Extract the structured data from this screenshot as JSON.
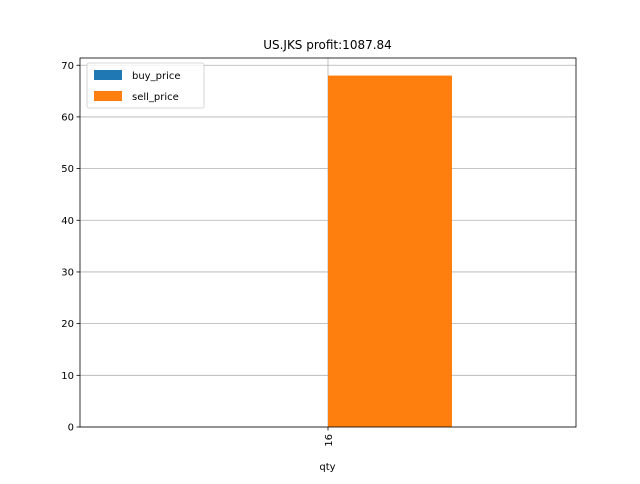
{
  "chart_data": {
    "type": "bar",
    "title": "US.JKS  profit:1087.84",
    "xlabel": "qty",
    "ylabel": "",
    "categories": [
      "16"
    ],
    "series": [
      {
        "name": "buy_price",
        "values": [
          0
        ],
        "color": "#1f77b4"
      },
      {
        "name": "sell_price",
        "values": [
          68
        ],
        "color": "#ff7f0e"
      }
    ],
    "ylim": [
      0,
      71.4
    ],
    "yticks": [
      0,
      10,
      20,
      30,
      40,
      50,
      60,
      70
    ],
    "grid": true,
    "legend_position": "upper-left",
    "x_tick_rotation": "vertical"
  }
}
